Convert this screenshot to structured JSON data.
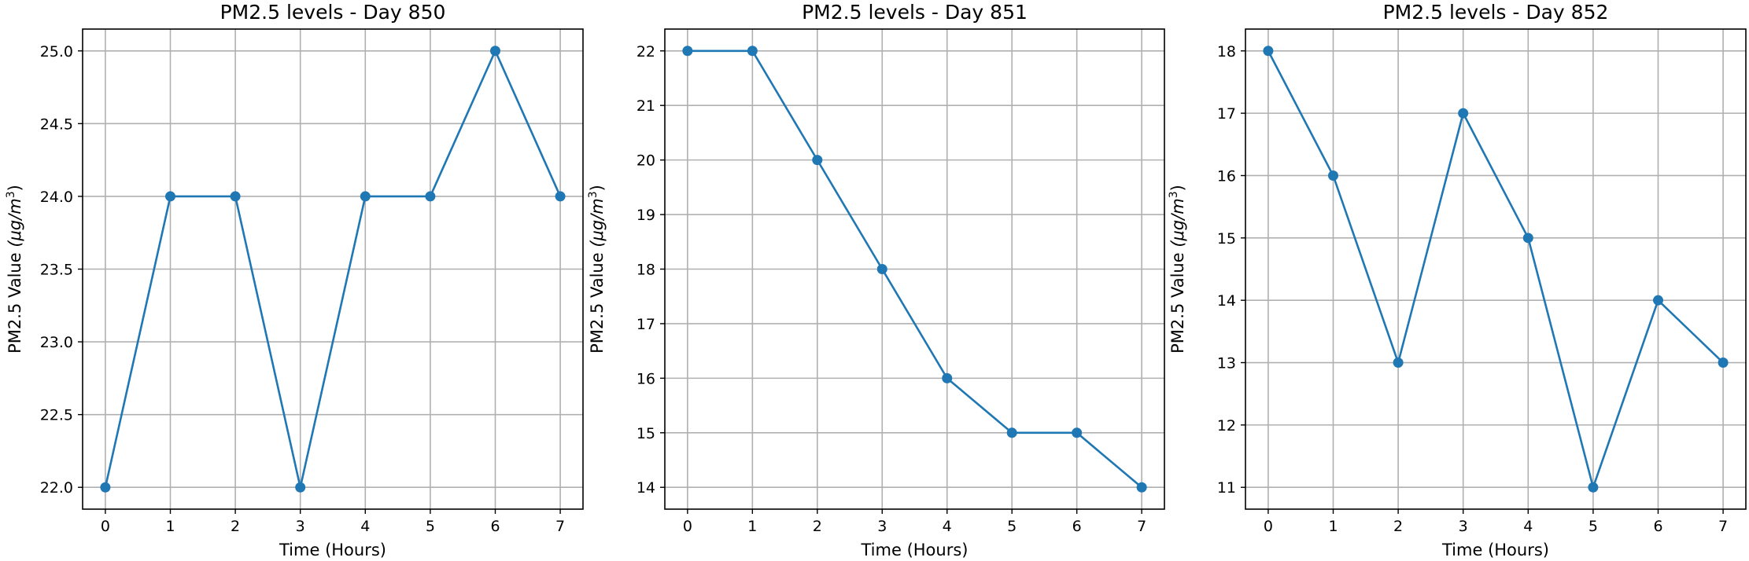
{
  "chart_data": [
    {
      "type": "line",
      "title": "PM2.5 levels - Day 850",
      "xlabel": "Time (Hours)",
      "ylabel": "PM2.5 Value",
      "ylabel_unit_prefix": "(μg/m",
      "ylabel_unit_exponent": "3",
      "ylabel_unit_suffix": ")",
      "x": [
        0,
        1,
        2,
        3,
        4,
        5,
        6,
        7
      ],
      "values": [
        22,
        24,
        24,
        22,
        24,
        24,
        25,
        24
      ],
      "xlim": [
        -0.35,
        7.35
      ],
      "ylim": [
        21.85,
        25.15
      ],
      "xticks": [
        0,
        1,
        2,
        3,
        4,
        5,
        6,
        7
      ],
      "yticks": [
        22.0,
        22.5,
        23.0,
        23.5,
        24.0,
        24.5,
        25.0
      ],
      "ytick_labels": [
        "22.0",
        "22.5",
        "23.0",
        "23.5",
        "24.0",
        "24.5",
        "25.0"
      ],
      "color": "#1f77b4",
      "marker": "circle",
      "grid": true
    },
    {
      "type": "line",
      "title": "PM2.5 levels - Day 851",
      "xlabel": "Time (Hours)",
      "ylabel": "PM2.5 Value",
      "ylabel_unit_prefix": "(μg/m",
      "ylabel_unit_exponent": "3",
      "ylabel_unit_suffix": ")",
      "x": [
        0,
        1,
        2,
        3,
        4,
        5,
        6,
        7
      ],
      "values": [
        22,
        22,
        20,
        18,
        16,
        15,
        15,
        14
      ],
      "xlim": [
        -0.35,
        7.35
      ],
      "ylim": [
        13.6,
        22.4
      ],
      "xticks": [
        0,
        1,
        2,
        3,
        4,
        5,
        6,
        7
      ],
      "yticks": [
        14,
        15,
        16,
        17,
        18,
        19,
        20,
        21,
        22
      ],
      "ytick_labels": [
        "14",
        "15",
        "16",
        "17",
        "18",
        "19",
        "20",
        "21",
        "22"
      ],
      "color": "#1f77b4",
      "marker": "circle",
      "grid": true
    },
    {
      "type": "line",
      "title": "PM2.5 levels - Day 852",
      "xlabel": "Time (Hours)",
      "ylabel": "PM2.5 Value",
      "ylabel_unit_prefix": "(μg/m",
      "ylabel_unit_exponent": "3",
      "ylabel_unit_suffix": ")",
      "x": [
        0,
        1,
        2,
        3,
        4,
        5,
        6,
        7
      ],
      "values": [
        18,
        16,
        13,
        17,
        15,
        11,
        14,
        13
      ],
      "xlim": [
        -0.35,
        7.35
      ],
      "ylim": [
        10.65,
        18.35
      ],
      "xticks": [
        0,
        1,
        2,
        3,
        4,
        5,
        6,
        7
      ],
      "yticks": [
        11,
        12,
        13,
        14,
        15,
        16,
        17,
        18
      ],
      "ytick_labels": [
        "11",
        "12",
        "13",
        "14",
        "15",
        "16",
        "17",
        "18"
      ],
      "color": "#1f77b4",
      "marker": "circle",
      "grid": true
    }
  ]
}
